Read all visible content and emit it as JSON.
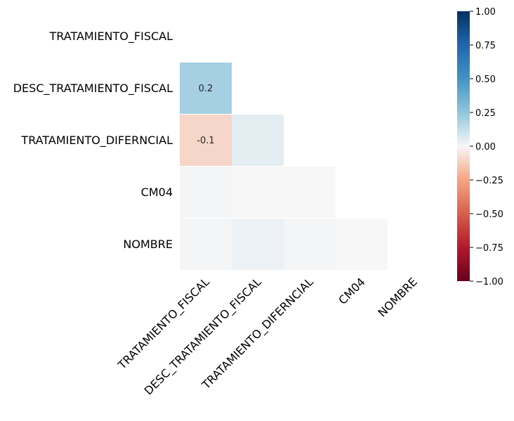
{
  "chart_data": {
    "type": "heatmap",
    "mask": "upper-triangle",
    "row_labels": [
      "TRATAMIENTO_FISCAL",
      "DESC_TRATAMIENTO_FISCAL",
      "TRATAMIENTO_DIFERNCIAL",
      "CM04",
      "NOMBRE"
    ],
    "col_labels": [
      "TRATAMIENTO_FISCAL",
      "DESC_TRATAMIENTO_FISCAL",
      "TRATAMIENTO_DIFERNCIAL",
      "CM04",
      "NOMBRE"
    ],
    "values": [
      [
        null,
        null,
        null,
        null,
        null
      ],
      [
        0.2,
        null,
        null,
        null,
        null
      ],
      [
        -0.1,
        0.05,
        null,
        null,
        null
      ],
      [
        0.01,
        0.0,
        0.0,
        null,
        null
      ],
      [
        0.01,
        0.03,
        0.01,
        0.0,
        null
      ]
    ],
    "annotations": [
      [
        null,
        null,
        null,
        null,
        null
      ],
      [
        "0.2",
        null,
        null,
        null,
        null
      ],
      [
        "-0.1",
        "",
        null,
        null,
        null
      ],
      [
        "",
        "",
        "",
        null,
        null
      ],
      [
        "",
        "",
        "",
        "",
        null
      ]
    ],
    "colormap": "RdBu",
    "vmin": -1.0,
    "vmax": 1.0,
    "colorbar_ticks": [
      "1.00",
      "0.75",
      "0.50",
      "0.25",
      "0.00",
      "−0.25",
      "−0.50",
      "−0.75",
      "−1.00"
    ],
    "colorbar_values": [
      1.0,
      0.75,
      0.5,
      0.25,
      0.0,
      -0.25,
      -0.5,
      -0.75,
      -1.0
    ]
  }
}
